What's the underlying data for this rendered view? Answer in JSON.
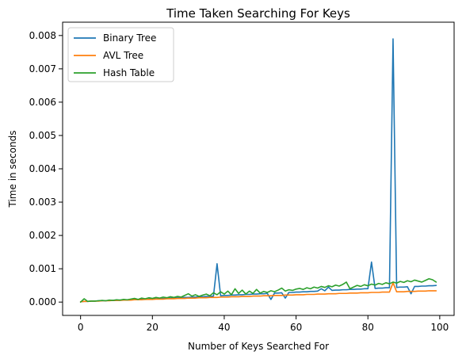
{
  "chart_data": {
    "type": "line",
    "title": "Time Taken Searching For Keys",
    "xlabel": "Number of Keys Searched For",
    "ylabel": "Time in seconds",
    "xlim": [
      -5,
      104
    ],
    "ylim": [
      -0.0004,
      0.0084
    ],
    "xticks": [
      0,
      20,
      40,
      60,
      80,
      100
    ],
    "yticks": [
      0.0,
      0.001,
      0.002,
      0.003,
      0.004,
      0.005,
      0.006,
      0.007,
      0.008
    ],
    "ytick_labels": [
      "0.000",
      "0.001",
      "0.002",
      "0.003",
      "0.004",
      "0.005",
      "0.006",
      "0.007",
      "0.008"
    ],
    "legend_position": "top-left",
    "grid": false,
    "x": [
      0,
      1,
      2,
      3,
      4,
      5,
      6,
      7,
      8,
      9,
      10,
      11,
      12,
      13,
      14,
      15,
      16,
      17,
      18,
      19,
      20,
      21,
      22,
      23,
      24,
      25,
      26,
      27,
      28,
      29,
      30,
      31,
      32,
      33,
      34,
      35,
      36,
      37,
      38,
      39,
      40,
      41,
      42,
      43,
      44,
      45,
      46,
      47,
      48,
      49,
      50,
      51,
      52,
      53,
      54,
      55,
      56,
      57,
      58,
      59,
      60,
      61,
      62,
      63,
      64,
      65,
      66,
      67,
      68,
      69,
      70,
      71,
      72,
      73,
      74,
      75,
      76,
      77,
      78,
      79,
      80,
      81,
      82,
      83,
      84,
      85,
      86,
      87,
      88,
      89,
      90,
      91,
      92,
      93,
      94,
      95,
      96,
      97,
      98,
      99
    ],
    "series": [
      {
        "name": "Binary Tree",
        "color": "#1f77b4",
        "values": [
          1e-05,
          2e-05,
          2e-05,
          3e-05,
          3e-05,
          4e-05,
          4e-05,
          4e-05,
          5e-05,
          5e-05,
          5e-05,
          6e-05,
          6e-05,
          6e-05,
          7e-05,
          7e-05,
          8e-05,
          8e-05,
          9e-05,
          9e-05,
          0.0001,
          0.0001,
          0.0001,
          0.00011,
          0.00011,
          0.00012,
          0.00012,
          0.00013,
          0.00013,
          0.00014,
          0.00014,
          0.00015,
          0.00015,
          0.00016,
          0.00016,
          0.00017,
          0.00017,
          0.00018,
          0.00115,
          0.00019,
          0.0002,
          0.0002,
          0.00021,
          0.00021,
          0.00022,
          0.00022,
          0.00023,
          0.00023,
          0.00024,
          0.00024,
          0.00025,
          0.00025,
          0.00026,
          8e-05,
          0.00027,
          0.00027,
          0.00028,
          0.00012,
          0.00029,
          0.00029,
          0.0003,
          0.0003,
          0.00031,
          0.00031,
          0.00032,
          0.00032,
          0.00033,
          0.0004,
          0.00034,
          0.00045,
          0.00035,
          0.00036,
          0.00036,
          0.00037,
          0.00037,
          0.00038,
          0.00038,
          0.00039,
          0.00039,
          0.0004,
          0.0004,
          0.0012,
          0.00041,
          0.00042,
          0.00042,
          0.00043,
          0.00043,
          0.0079,
          0.00044,
          0.00045,
          0.00045,
          0.00046,
          0.00025,
          0.00047,
          0.00047,
          0.00048,
          0.00048,
          0.00049,
          0.00049,
          0.0005
        ]
      },
      {
        "name": "AVL Tree",
        "color": "#ff7f0e",
        "values": [
          1e-05,
          2e-05,
          2e-05,
          3e-05,
          3e-05,
          3e-05,
          4e-05,
          4e-05,
          4e-05,
          5e-05,
          5e-05,
          5e-05,
          6e-05,
          6e-05,
          6e-05,
          7e-05,
          7e-05,
          7e-05,
          8e-05,
          8e-05,
          8e-05,
          9e-05,
          9e-05,
          9e-05,
          0.0001,
          0.0001,
          0.0001,
          0.00011,
          0.00011,
          0.00011,
          0.00012,
          0.00012,
          0.00012,
          0.00013,
          0.00013,
          0.00013,
          0.00014,
          0.00014,
          0.00014,
          0.00015,
          0.00015,
          0.00015,
          0.00016,
          0.00016,
          0.00016,
          0.00017,
          0.00017,
          0.00017,
          0.00018,
          0.00018,
          0.00018,
          0.00019,
          0.00019,
          0.00019,
          0.0002,
          0.0002,
          0.0002,
          0.00021,
          0.00021,
          0.00021,
          0.00022,
          0.00022,
          0.00022,
          0.00023,
          0.00023,
          0.00023,
          0.00024,
          0.00024,
          0.00024,
          0.00025,
          0.00025,
          0.00025,
          0.00026,
          0.00026,
          0.00026,
          0.00027,
          0.00027,
          0.00027,
          0.00028,
          0.00028,
          0.00028,
          0.00029,
          0.00029,
          0.00029,
          0.0003,
          0.0003,
          0.0003,
          0.00058,
          0.00031,
          0.00031,
          0.00031,
          0.00032,
          0.00032,
          0.00032,
          0.00033,
          0.00033,
          0.00033,
          0.00034,
          0.00034,
          0.00034
        ]
      },
      {
        "name": "Hash Table",
        "color": "#2ca02c",
        "values": [
          0.0,
          0.0001,
          2e-05,
          3e-05,
          3e-05,
          4e-05,
          5e-05,
          4e-05,
          6e-05,
          5e-05,
          7e-05,
          6e-05,
          8e-05,
          7e-05,
          9e-05,
          0.00011,
          8e-05,
          0.00012,
          0.0001,
          0.00013,
          0.00011,
          0.00014,
          0.00012,
          0.00015,
          0.00013,
          0.00016,
          0.00014,
          0.00017,
          0.00015,
          0.0002,
          0.00025,
          0.00018,
          0.00022,
          0.00017,
          0.00021,
          0.00024,
          0.00019,
          0.00028,
          0.00022,
          0.00031,
          0.00024,
          0.00033,
          0.00022,
          0.0004,
          0.00026,
          0.00036,
          0.00024,
          0.00033,
          0.00026,
          0.00038,
          0.00027,
          0.00032,
          0.00029,
          0.00034,
          0.00031,
          0.00036,
          0.00042,
          0.00033,
          0.00037,
          0.00035,
          0.00039,
          0.00041,
          0.00038,
          0.00043,
          0.0004,
          0.00045,
          0.00042,
          0.00047,
          0.00044,
          0.00049,
          0.00046,
          0.00051,
          0.00048,
          0.00053,
          0.0006,
          0.0004,
          0.00045,
          0.0005,
          0.00047,
          0.00052,
          0.00049,
          0.00054,
          0.00051,
          0.00056,
          0.00053,
          0.00058,
          0.00055,
          0.0006,
          0.00057,
          0.00062,
          0.00059,
          0.00064,
          0.00061,
          0.00066,
          0.00063,
          0.0006,
          0.00065,
          0.0007,
          0.00067,
          0.0006
        ]
      }
    ]
  }
}
